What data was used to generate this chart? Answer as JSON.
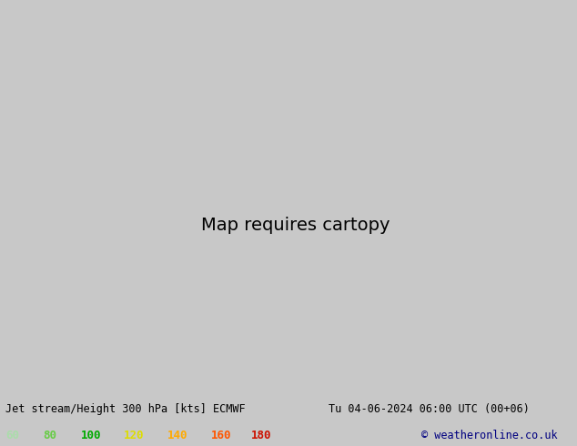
{
  "title_left": "Jet stream/Height 300 hPa [kts] ECMWF",
  "title_right": "Tu 04-06-2024 06:00 UTC (00+06)",
  "copyright": "© weatheronline.co.uk",
  "legend_values": [
    "60",
    "80",
    "100",
    "120",
    "140",
    "160",
    "180"
  ],
  "legend_colors": [
    "#aaddaa",
    "#66cc44",
    "#00aa00",
    "#dddd00",
    "#ffaa00",
    "#ff5500",
    "#cc1100"
  ],
  "bg_color": "#c8c8c8",
  "ocean_color": "#d0d4e0",
  "land_color": "#d4d8c0",
  "title_fontsize": 8.5,
  "legend_fontsize": 9,
  "copyright_color": "#000080",
  "map_border": "#000000",
  "jet_colors": {
    "60": "#aaddaa",
    "80": "#55bb44",
    "100": "#00aa00",
    "120": "#dddd00",
    "140": "#ffaa00",
    "160": "#ff5500",
    "180": "#cc1100"
  },
  "contour_color": "#000000",
  "state_border_color": "#999999",
  "province_border_color": "#999999"
}
